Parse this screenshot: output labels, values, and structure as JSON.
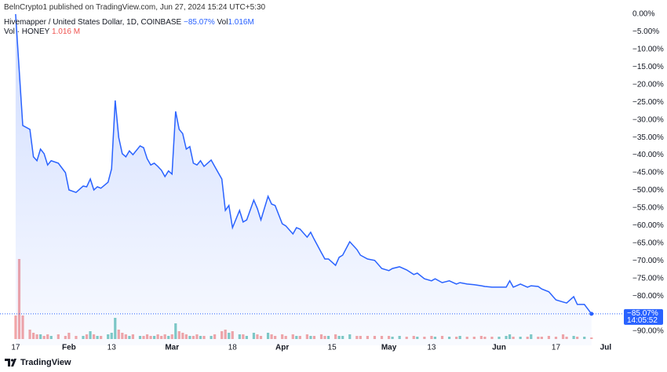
{
  "header": {
    "source": "BelnCrypto1 published on TradingView.com, Jun 27, 2024 15:24 UTC+5:30",
    "vol_label": "Vol",
    "vol_value": "1.016M",
    "countdown": "14:05:52",
    "brand": "TradingView"
  },
  "chart_data": {
    "type": "area",
    "title": "Hivemapper / United States Dollar, 1D, COINBASE",
    "x": [
      0,
      1,
      2,
      4,
      5,
      6,
      7,
      8,
      9,
      10,
      12,
      14,
      15,
      17,
      19,
      20,
      21,
      22,
      23,
      24,
      26,
      27,
      28,
      29,
      30,
      31,
      32,
      33,
      35,
      36,
      37,
      38,
      39,
      40,
      41,
      42,
      43,
      44,
      45,
      46,
      47,
      48,
      49,
      50,
      51,
      52,
      53,
      55,
      56,
      58,
      59,
      60,
      61,
      63,
      64,
      65,
      67,
      68,
      69,
      71,
      72,
      73,
      75,
      76,
      78,
      79,
      80,
      82,
      83,
      84,
      86,
      87,
      88,
      90,
      91,
      92,
      94,
      96,
      97,
      99,
      101,
      103,
      105,
      106,
      108,
      110,
      112,
      113,
      115,
      117,
      118,
      120,
      122,
      124,
      125,
      127,
      129,
      131,
      132,
      134,
      136,
      138,
      139,
      140,
      142,
      144,
      145,
      147,
      148,
      150,
      152,
      154,
      155,
      157,
      158,
      160,
      162
    ],
    "series": [
      {
        "color": "#2962ff",
        "last_label": "−85.07%",
        "values": [
          0,
          -16,
          -31.6,
          -32.7,
          -40.5,
          -41.6,
          -38.3,
          -39.6,
          -42.8,
          -41.6,
          -42.3,
          -45,
          -49.9,
          -50.6,
          -48.8,
          -49,
          -46.8,
          -49.9,
          -49,
          -49.4,
          -47.7,
          -43.9,
          -24.5,
          -35,
          -39.6,
          -40.5,
          -38.8,
          -39.9,
          -37.4,
          -37.9,
          -41,
          -42.8,
          -42.3,
          -43.2,
          -44.3,
          -46.1,
          -44.5,
          -45.4,
          -27.6,
          -32.7,
          -33.9,
          -38.3,
          -37.6,
          -42.3,
          -42.8,
          -41.6,
          -43.2,
          -41.4,
          -43.2,
          -46.8,
          -55.7,
          -54.3,
          -60.6,
          -55.7,
          -59,
          -58.4,
          -52.8,
          -55.2,
          -58.4,
          -51.7,
          -53.9,
          -54.3,
          -59.5,
          -60.1,
          -62.4,
          -60.6,
          -61,
          -63.3,
          -61.9,
          -63.9,
          -67.7,
          -69.5,
          -69.5,
          -71.3,
          -69,
          -68.4,
          -64.6,
          -66.8,
          -68.4,
          -69.5,
          -69.9,
          -72.2,
          -72.8,
          -72.2,
          -71.7,
          -72.6,
          -73.9,
          -73.5,
          -75.1,
          -75.7,
          -75.1,
          -76.2,
          -75.7,
          -76.6,
          -76.2,
          -76.6,
          -76.8,
          -77.1,
          -77.3,
          -77.5,
          -77.5,
          -77.5,
          -75.7,
          -77.5,
          -76.6,
          -77.5,
          -77.1,
          -77.3,
          -78,
          -78.8,
          -81.1,
          -81.7,
          -82,
          -80.2,
          -82.4,
          -82.4,
          -85.07
        ]
      }
    ],
    "volume": {
      "name": "Vol · HONEY",
      "last_label": "1.016 M",
      "up_color": "#80cbc4",
      "down_color": "#f4a6a6",
      "ylim": [
        0,
        60
      ],
      "values": [
        15,
        51,
        15,
        6,
        4,
        3,
        3,
        2,
        3,
        2,
        3,
        2,
        4,
        2,
        2,
        3,
        5,
        3,
        2,
        2,
        3,
        4,
        13.5,
        6,
        4,
        3,
        2,
        3,
        2,
        2,
        3,
        2,
        2,
        3,
        2,
        3,
        2,
        3,
        10,
        5,
        4,
        3,
        2,
        2,
        3,
        2,
        2,
        2,
        3,
        5,
        6,
        4,
        5,
        3,
        3,
        2,
        4,
        3,
        2,
        4,
        3,
        2,
        3,
        2,
        3,
        2,
        2,
        3,
        2,
        2,
        3,
        2,
        2,
        3,
        2,
        2,
        3,
        2,
        2,
        2,
        2,
        2,
        2,
        1.5,
        2,
        1.5,
        2,
        1.5,
        1.5,
        2,
        1.5,
        2,
        1.5,
        1.5,
        2,
        1.5,
        1.5,
        2,
        1.5,
        1.5,
        1.5,
        2,
        3,
        1.5,
        1.5,
        1.5,
        3,
        1.5,
        1.5,
        2,
        1.5,
        3,
        1.5,
        2,
        1.5,
        1.5,
        1.016
      ]
    },
    "xlim": [
      -4.4,
      171.1
    ],
    "ylim": [
      -94,
      2.9
    ],
    "xticks": [
      {
        "value": 0,
        "label": "17"
      },
      {
        "value": 15,
        "label": "Feb"
      },
      {
        "value": 27,
        "label": "13"
      },
      {
        "value": 44,
        "label": "Mar"
      },
      {
        "value": 61,
        "label": "18"
      },
      {
        "value": 75,
        "label": "Apr"
      },
      {
        "value": 89,
        "label": "15"
      },
      {
        "value": 105,
        "label": "May"
      },
      {
        "value": 117,
        "label": "13"
      },
      {
        "value": 136,
        "label": "Jun"
      },
      {
        "value": 152,
        "label": "17"
      },
      {
        "value": 166,
        "label": "Jul"
      }
    ],
    "yticks": [
      {
        "value": 0,
        "label": "0.00%"
      },
      {
        "value": -5,
        "label": "−5.00%"
      },
      {
        "value": -10,
        "label": "−10.00%"
      },
      {
        "value": -15,
        "label": "−15.00%"
      },
      {
        "value": -20,
        "label": "−20.00%"
      },
      {
        "value": -25,
        "label": "−25.00%"
      },
      {
        "value": -30,
        "label": "−30.00%"
      },
      {
        "value": -35,
        "label": "−35.00%"
      },
      {
        "value": -40,
        "label": "−40.00%"
      },
      {
        "value": -45,
        "label": "−45.00%"
      },
      {
        "value": -50,
        "label": "−50.00%"
      },
      {
        "value": -55,
        "label": "−55.00%"
      },
      {
        "value": -60,
        "label": "−60.00%"
      },
      {
        "value": -65,
        "label": "−65.00%"
      },
      {
        "value": -70,
        "label": "−70.00%"
      },
      {
        "value": -75,
        "label": "−75.00%"
      },
      {
        "value": -80,
        "label": "−80.00%"
      },
      {
        "value": -90,
        "label": "−90.00%"
      }
    ],
    "grid": false
  }
}
